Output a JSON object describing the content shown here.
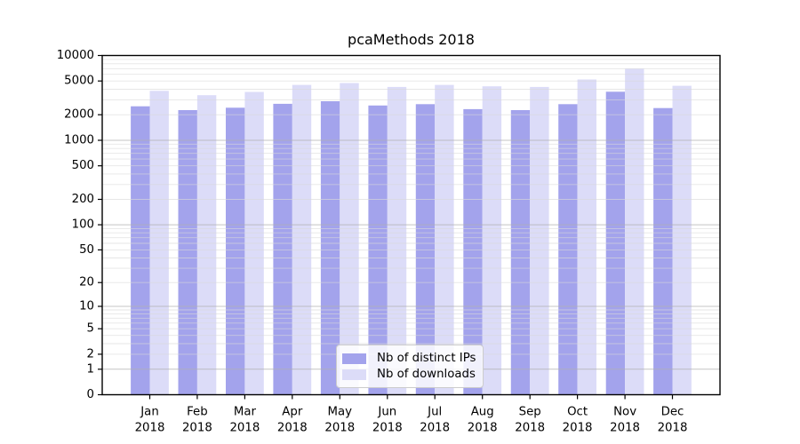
{
  "title": "pcaMethods 2018",
  "colors": {
    "ips": "#a3a3ec",
    "downloads": "#dcdcf8",
    "grid_major": "#b0b0b0",
    "grid_minor": "#d8d8d8",
    "axis": "#000000",
    "legend_border": "#cccccc",
    "background": "#ffffff"
  },
  "chart_data": {
    "type": "bar",
    "title": "pcaMethods 2018",
    "categories": [
      "Jan 2018",
      "Feb 2018",
      "Mar 2018",
      "Apr 2018",
      "May 2018",
      "Jun 2018",
      "Jul 2018",
      "Aug 2018",
      "Sep 2018",
      "Oct 2018",
      "Nov 2018",
      "Dec 2018"
    ],
    "series": [
      {
        "name": "Nb of distinct IPs",
        "color_key": "ips",
        "values": [
          2520,
          2270,
          2420,
          2690,
          2890,
          2570,
          2670,
          2330,
          2270,
          2670,
          3740,
          2400
        ]
      },
      {
        "name": "Nb of downloads",
        "color_key": "downloads",
        "values": [
          3830,
          3400,
          3720,
          4500,
          4730,
          4260,
          4500,
          4330,
          4260,
          5210,
          7000,
          4390
        ]
      }
    ],
    "xlabel": "",
    "ylabel": "",
    "y_axis": {
      "scale": "log10(value+1)",
      "range": [
        0,
        10000
      ],
      "tick_labels": [
        0,
        1,
        2,
        5,
        10,
        20,
        50,
        100,
        200,
        500,
        1000,
        2000,
        5000,
        10000
      ],
      "major_gridlines": [
        1,
        10,
        100,
        1000,
        10000
      ],
      "minor_gridline_mantissas": [
        2,
        3,
        4,
        5,
        6,
        7,
        8,
        9
      ]
    },
    "grid": true,
    "legend_position": "lower center"
  }
}
